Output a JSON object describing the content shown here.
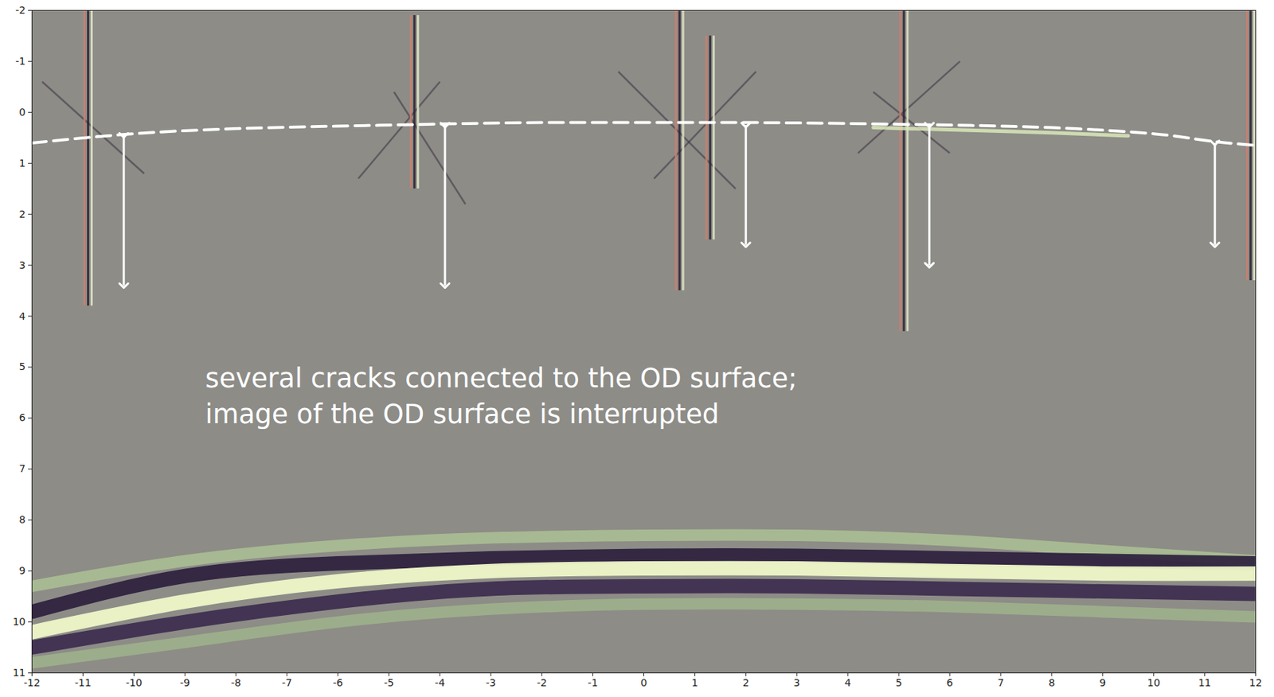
{
  "chart_data": {
    "type": "ultrasonic_image",
    "color": "#8d8c87",
    "xlim": [
      -12,
      12
    ],
    "ylim": [
      11,
      -2
    ],
    "xticks": [
      -12,
      -11,
      -10,
      -9,
      -8,
      -7,
      -6,
      -5,
      -4,
      -3,
      -2,
      -1,
      0,
      1,
      2,
      3,
      4,
      5,
      6,
      7,
      8,
      9,
      10,
      11,
      12
    ],
    "yticks": [
      -2,
      -1,
      0,
      1,
      2,
      3,
      4,
      5,
      6,
      7,
      8,
      9,
      10,
      11
    ],
    "annotation": {
      "lines": [
        "several cracks connected to the OD surface;",
        "image of the OD surface is interrupted"
      ],
      "x": -8.6,
      "y": 4.9
    },
    "od_surface": {
      "x": [
        -12,
        -10,
        -8,
        -6,
        -4,
        -2,
        0,
        2,
        4,
        6,
        8,
        10,
        11,
        12
      ],
      "y": [
        0.6,
        0.42,
        0.32,
        0.27,
        0.23,
        0.2,
        0.2,
        0.2,
        0.22,
        0.25,
        0.3,
        0.42,
        0.55,
        0.65
      ]
    },
    "od_echo": {
      "x": [
        4.5,
        6,
        8,
        9.5
      ],
      "y": [
        0.3,
        0.34,
        0.4,
        0.46
      ],
      "color": "#d9e8b8"
    },
    "depth_arrows": [
      {
        "x": -10.2,
        "y1": 0.45,
        "y2": 3.4
      },
      {
        "x": -3.9,
        "y1": 0.25,
        "y2": 3.4
      },
      {
        "x": 2.0,
        "y1": 0.25,
        "y2": 2.6
      },
      {
        "x": 5.6,
        "y1": 0.25,
        "y2": 3.0
      },
      {
        "x": 11.2,
        "y1": 0.6,
        "y2": 2.6
      }
    ],
    "cracks": {
      "colors": [
        "#c9806f",
        "#2b2233",
        "#dfe6c6"
      ],
      "items": [
        {
          "x": -10.9,
          "y1": -2,
          "y2": 3.8
        },
        {
          "x": -4.5,
          "y1": -1.9,
          "y2": 1.5
        },
        {
          "x": 0.7,
          "y1": -2,
          "y2": 3.5
        },
        {
          "x": 1.3,
          "y1": -1.5,
          "y2": 2.5
        },
        {
          "x": 5.1,
          "y1": -2,
          "y2": 4.3
        },
        {
          "x": 11.9,
          "y1": -2,
          "y2": 3.3
        }
      ]
    },
    "crack_arcs": {
      "color": "#3a3040",
      "items": [
        {
          "x1": -11.8,
          "y1": -0.6,
          "x2": -9.8,
          "y2": 1.2
        },
        {
          "x1": -5.6,
          "y1": 1.3,
          "x2": -4.0,
          "y2": -0.6
        },
        {
          "x1": -4.9,
          "y1": -0.4,
          "x2": -3.5,
          "y2": 1.8
        },
        {
          "x1": -0.5,
          "y1": -0.8,
          "x2": 1.8,
          "y2": 1.5
        },
        {
          "x1": 0.2,
          "y1": 1.3,
          "x2": 2.2,
          "y2": -0.8
        },
        {
          "x1": 4.2,
          "y1": 0.8,
          "x2": 6.2,
          "y2": -1.0
        },
        {
          "x1": 4.5,
          "y1": -0.4,
          "x2": 6.0,
          "y2": 0.8
        }
      ]
    },
    "backwall": {
      "x": [
        -12,
        -9,
        -6,
        -3,
        0,
        3,
        6,
        9,
        12
      ],
      "layers": [
        {
          "color": "#b9d79a",
          "y": [
            9.3,
            8.8,
            8.5,
            8.35,
            8.3,
            8.3,
            8.4,
            8.6,
            8.8
          ]
        },
        {
          "color": "#2a1d3c",
          "y": [
            9.8,
            9.1,
            8.85,
            8.75,
            8.7,
            8.7,
            8.75,
            8.8,
            8.85
          ]
        },
        {
          "color": "#eef7c8",
          "y": [
            10.2,
            9.6,
            9.2,
            9.0,
            8.95,
            8.95,
            9.0,
            9.05,
            9.05
          ]
        },
        {
          "color": "#3a2a4c",
          "y": [
            10.5,
            10.0,
            9.6,
            9.35,
            9.3,
            9.3,
            9.35,
            9.4,
            9.45
          ]
        },
        {
          "color": "#a9c98e",
          "y": [
            10.8,
            10.4,
            10.0,
            9.75,
            9.65,
            9.65,
            9.7,
            9.8,
            9.9
          ]
        }
      ]
    }
  }
}
